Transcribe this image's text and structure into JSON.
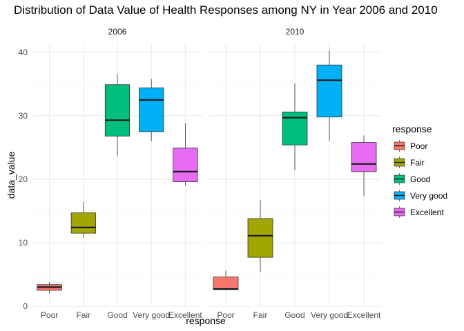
{
  "chart_data": {
    "type": "boxplot",
    "title": "Distribution of Data Value of Health Responses among NY in Year 2006 and 2010",
    "xlabel": "response",
    "ylabel": "data_value",
    "ylim": [
      0,
      41.5
    ],
    "yticks": [
      0,
      10,
      20,
      30,
      40
    ],
    "grid": true,
    "legend": {
      "title": "response",
      "position": "right"
    },
    "categories": [
      "Poor",
      "Fair",
      "Good",
      "Very good",
      "Excellent"
    ],
    "colors": {
      "Poor": "#F8766D",
      "Fair": "#A3A500",
      "Good": "#00BF7D",
      "Very good": "#00B0F6",
      "Excellent": "#E76BF3"
    },
    "facets": [
      {
        "label": "2006",
        "boxes": [
          {
            "category": "Poor",
            "min": 2.0,
            "q1": 2.5,
            "median": 3.0,
            "q3": 3.4,
            "max": 3.8
          },
          {
            "category": "Fair",
            "min": 10.8,
            "q1": 11.5,
            "median": 12.4,
            "q3": 14.7,
            "max": 16.4
          },
          {
            "category": "Good",
            "min": 23.6,
            "q1": 26.8,
            "median": 29.3,
            "q3": 34.9,
            "max": 36.6
          },
          {
            "category": "Very good",
            "min": 26.0,
            "q1": 27.5,
            "median": 32.5,
            "q3": 34.4,
            "max": 35.8
          },
          {
            "category": "Excellent",
            "min": 19.0,
            "q1": 19.6,
            "median": 21.2,
            "q3": 24.9,
            "max": 28.8
          }
        ]
      },
      {
        "label": "2010",
        "boxes": [
          {
            "category": "Poor",
            "min": 2.5,
            "q1": 2.6,
            "median": 2.7,
            "q3": 4.6,
            "max": 5.6
          },
          {
            "category": "Fair",
            "min": 5.4,
            "q1": 7.7,
            "median": 11.1,
            "q3": 13.8,
            "max": 16.7
          },
          {
            "category": "Good",
            "min": 21.4,
            "q1": 25.4,
            "median": 29.7,
            "q3": 30.6,
            "max": 35.1
          },
          {
            "category": "Very good",
            "min": 26.0,
            "q1": 29.8,
            "median": 35.6,
            "q3": 38.0,
            "max": 40.3
          },
          {
            "category": "Excellent",
            "min": 17.4,
            "q1": 21.2,
            "median": 22.4,
            "q3": 25.8,
            "max": 26.9
          }
        ]
      }
    ]
  }
}
